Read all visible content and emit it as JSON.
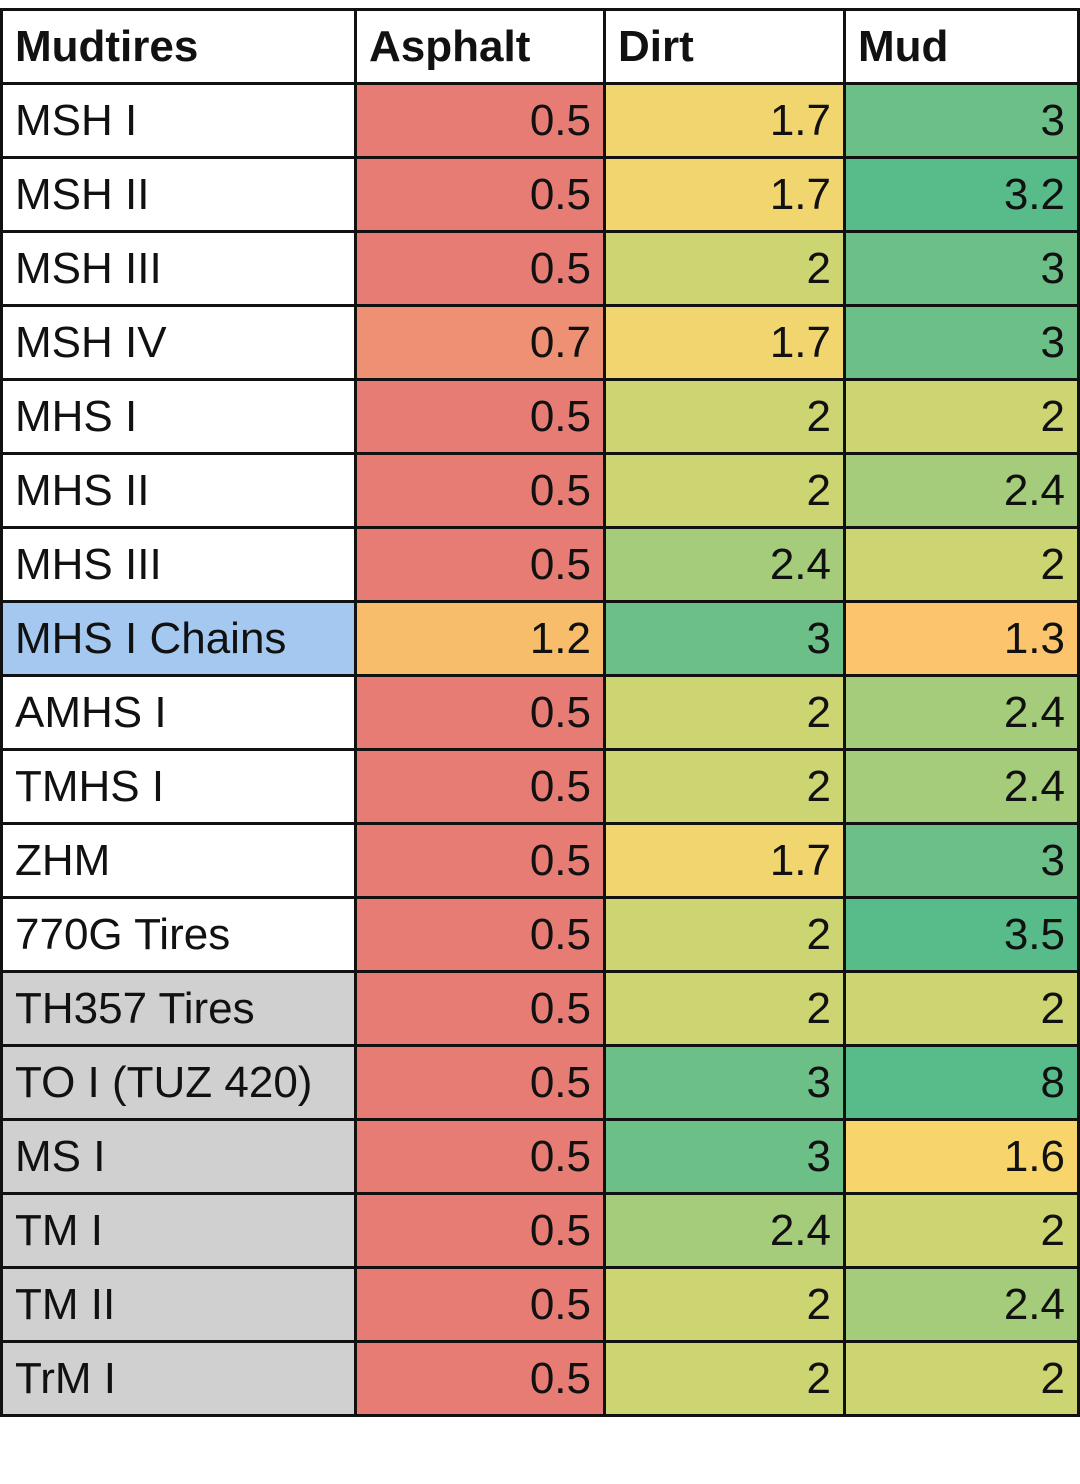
{
  "table": {
    "header": [
      "Mudtires",
      "Asphalt",
      "Dirt",
      "Mud"
    ],
    "rows": [
      [
        "MSH I",
        0.5,
        1.7,
        3
      ],
      [
        "MSH II",
        0.5,
        1.7,
        3.2
      ],
      [
        "MSH III",
        0.5,
        2,
        3
      ],
      [
        "MSH IV",
        0.7,
        1.7,
        3
      ],
      [
        "MHS I",
        0.5,
        2,
        2
      ],
      [
        "MHS II",
        0.5,
        2,
        2.4
      ],
      [
        "MHS III",
        0.5,
        2.4,
        2
      ],
      [
        "MHS I Chains",
        1.2,
        3,
        1.3
      ],
      [
        "AMHS I",
        0.5,
        2,
        2.4
      ],
      [
        "TMHS I",
        0.5,
        2,
        2.4
      ],
      [
        "ZHM",
        0.5,
        1.7,
        3
      ],
      [
        "770G Tires",
        0.5,
        2,
        3.5
      ],
      [
        "TH357 Tires",
        0.5,
        2,
        2
      ],
      [
        "TO I (TUZ 420)",
        0.5,
        3,
        8
      ],
      [
        "MS I",
        0.5,
        3,
        1.6
      ],
      [
        "TM I",
        0.5,
        2.4,
        2
      ],
      [
        "TM II",
        0.5,
        2,
        2.4
      ],
      [
        "TrM I",
        0.5,
        2,
        2
      ]
    ],
    "cell_colors": [
      [
        "#ffffff",
        "#e67c73",
        "#f1d56e",
        "#6cbf86"
      ],
      [
        "#ffffff",
        "#e67c73",
        "#f1d56e",
        "#57bb8a"
      ],
      [
        "#ffffff",
        "#e67c73",
        "#cdd573",
        "#6cbf86"
      ],
      [
        "#ffffff",
        "#ee9073",
        "#f1d56e",
        "#6cbf86"
      ],
      [
        "#ffffff",
        "#e67c73",
        "#cdd573",
        "#cdd573"
      ],
      [
        "#ffffff",
        "#e67c73",
        "#cdd573",
        "#a4cc7a"
      ],
      [
        "#ffffff",
        "#e67c73",
        "#a4cc7a",
        "#cdd573"
      ],
      [
        "#a4c8ef",
        "#f7bd6a",
        "#6cbf86",
        "#fcc46c"
      ],
      [
        "#ffffff",
        "#e67c73",
        "#cdd573",
        "#a4cc7a"
      ],
      [
        "#ffffff",
        "#e67c73",
        "#cdd573",
        "#a4cc7a"
      ],
      [
        "#ffffff",
        "#e67c73",
        "#f1d56e",
        "#6cbf86"
      ],
      [
        "#ffffff",
        "#e67c73",
        "#cdd573",
        "#57bb8a"
      ],
      [
        "#d0d0d0",
        "#e67c73",
        "#cdd573",
        "#cdd573"
      ],
      [
        "#d0d0d0",
        "#e67c73",
        "#6cbf86",
        "#57bb8a"
      ],
      [
        "#d0d0d0",
        "#e67c73",
        "#6cbf86",
        "#f7d56b"
      ],
      [
        "#d0d0d0",
        "#e67c73",
        "#a4cc7a",
        "#cdd573"
      ],
      [
        "#d0d0d0",
        "#e67c73",
        "#cdd573",
        "#a4cc7a"
      ],
      [
        "#d0d0d0",
        "#e67c73",
        "#cdd573",
        "#cdd573"
      ]
    ]
  }
}
